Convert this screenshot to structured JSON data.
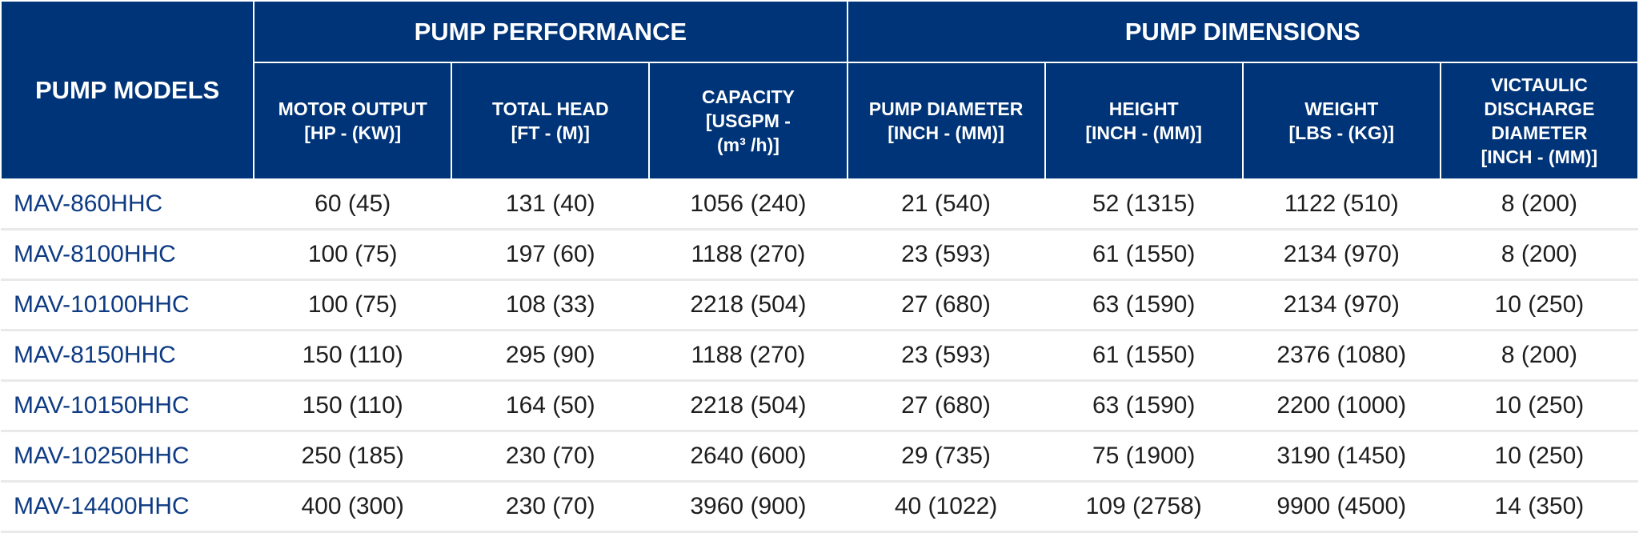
{
  "header": {
    "models": "PUMP MODELS",
    "groups": [
      "PUMP PERFORMANCE",
      "PUMP DIMENSIONS"
    ],
    "columns": [
      [
        "MOTOR OUTPUT",
        "[HP - (KW)]"
      ],
      [
        "TOTAL HEAD",
        "[FT - (M)]"
      ],
      [
        "CAPACITY",
        "[USGPM -",
        "(m³ /h)]"
      ],
      [
        "PUMP DIAMETER",
        "[INCH - (MM)]"
      ],
      [
        "HEIGHT",
        "[INCH - (MM)]"
      ],
      [
        "WEIGHT",
        "[LBS - (KG)]"
      ],
      [
        "VICTAULIC",
        "DISCHARGE",
        "DIAMETER",
        "[INCH - (MM)]"
      ]
    ]
  },
  "rows": [
    [
      "MAV-860HHC",
      "60 (45)",
      "131 (40)",
      "1056 (240)",
      "21 (540)",
      "52 (1315)",
      "1122 (510)",
      "8 (200)"
    ],
    [
      "MAV-8100HHC",
      "100 (75)",
      "197 (60)",
      "1188 (270)",
      "23 (593)",
      "61 (1550)",
      "2134 (970)",
      "8 (200)"
    ],
    [
      "MAV-10100HHC",
      "100 (75)",
      "108 (33)",
      "2218 (504)",
      "27 (680)",
      "63 (1590)",
      "2134 (970)",
      "10 (250)"
    ],
    [
      "MAV-8150HHC",
      "150 (110)",
      "295 (90)",
      "1188 (270)",
      "23 (593)",
      "61 (1550)",
      "2376 (1080)",
      "8 (200)"
    ],
    [
      "MAV-10150HHC",
      "150 (110)",
      "164 (50)",
      "2218 (504)",
      "27 (680)",
      "63 (1590)",
      "2200 (1000)",
      "10 (250)"
    ],
    [
      "MAV-10250HHC",
      "250 (185)",
      "230 (70)",
      "2640 (600)",
      "29 (735)",
      "75 (1900)",
      "3190 (1450)",
      "10 (250)"
    ],
    [
      "MAV-14400HHC",
      "400 (300)",
      "230 (70)",
      "3960 (900)",
      "40 (1022)",
      "109 (2758)",
      "9900 (4500)",
      "14 (350)"
    ]
  ]
}
